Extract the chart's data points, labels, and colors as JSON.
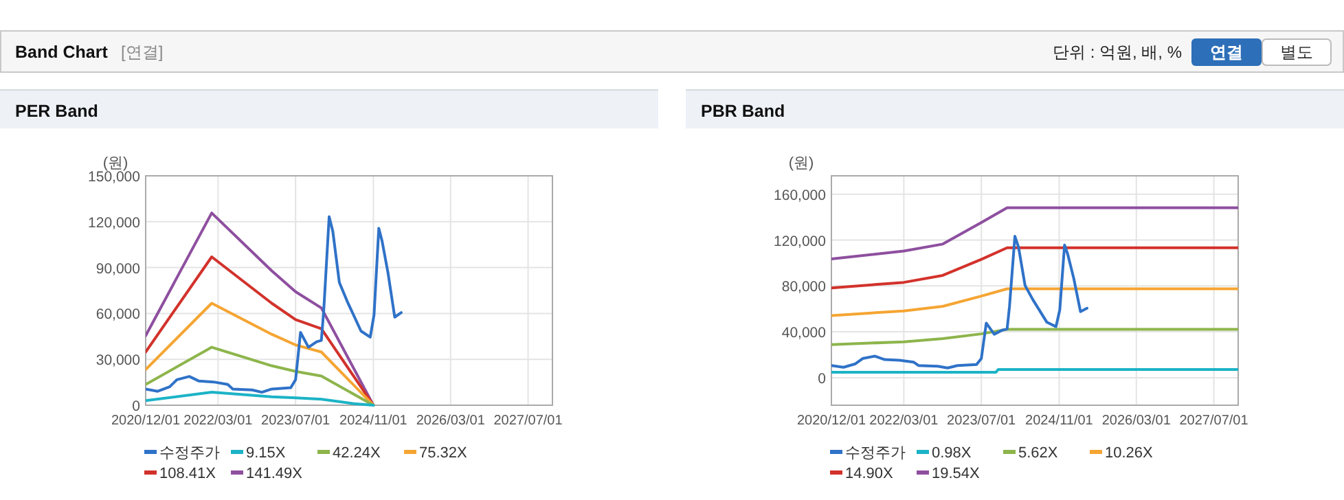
{
  "chart_data": [
    {
      "type": "other",
      "title": "Band Chart",
      "annotations": [
        "[연결]",
        "단위 : 억원, 배, %",
        "연결",
        "별도"
      ]
    },
    {
      "type": "line",
      "title": "PER Band",
      "ylabel": "(원)",
      "grid": true,
      "legend": "bottom",
      "xlim": [
        "2020-12-01",
        "2027-12-01"
      ],
      "ylim": [
        0,
        150000
      ],
      "xticks": [
        {
          "value": "2020-12-01",
          "label": "2020/12/01"
        },
        {
          "value": "2022-03-01",
          "label": "2022/03/01"
        },
        {
          "value": "2023-07-01",
          "label": "2023/07/01"
        },
        {
          "value": "2024-11-01",
          "label": "2024/11/01"
        },
        {
          "value": "2026-03-01",
          "label": "2026/03/01"
        },
        {
          "value": "2027-07-01",
          "label": "2027/07/01"
        }
      ],
      "yticks": [
        0,
        {
          "value": 30000,
          "label": "30,000"
        },
        {
          "value": 60000,
          "label": "60,000"
        },
        {
          "value": 90000,
          "label": "90,000"
        },
        {
          "value": 120000,
          "label": "120,000"
        },
        {
          "value": 150000,
          "label": "150,000"
        }
      ],
      "series": [
        {
          "name": "수정주가",
          "color": "#2f72c8",
          "x": [
            "2020-12-01",
            "2021-02-15",
            "2021-05-01",
            "2021-06-15",
            "2021-09-01",
            "2021-11-01",
            "2022-02-01",
            "2022-05-01",
            "2022-06-01",
            "2022-10-01",
            "2022-12-01",
            "2023-02-01",
            "2023-06-01",
            "2023-07-01",
            "2023-08-01",
            "2023-09-20",
            "2023-11-10",
            "2023-12-10",
            "2023-12-25",
            "2024-01-28",
            "2024-02-20",
            "2024-04-01",
            "2024-05-20",
            "2024-08-15",
            "2024-10-12",
            "2024-11-05",
            "2024-12-05",
            "2024-12-25",
            "2025-02-01",
            "2025-03-15",
            "2025-04-25"
          ],
          "values": [
            10600,
            9100,
            12100,
            16700,
            18800,
            15800,
            15200,
            13600,
            10600,
            10000,
            8500,
            10600,
            11500,
            16700,
            47600,
            37900,
            41500,
            42400,
            62100,
            123300,
            113600,
            80300,
            68000,
            48500,
            44500,
            59100,
            115700,
            107600,
            86400,
            57600,
            60600
          ]
        },
        {
          "name": "9.15X",
          "color": "#1cb3c6",
          "x": [
            "2020-12-01",
            "2022-01-20",
            "2023-02-01",
            "2023-07-01",
            "2023-12-10",
            "2024-07-01",
            "2024-11-01"
          ],
          "values": [
            3000,
            8500,
            5500,
            4800,
            3900,
            1000,
            0
          ]
        },
        {
          "name": "42.24X",
          "color": "#8db54c",
          "x": [
            "2020-12-01",
            "2022-01-20",
            "2023-02-01",
            "2023-07-01",
            "2023-12-10",
            "2024-11-01"
          ],
          "values": [
            13600,
            37900,
            25800,
            22100,
            19100,
            0
          ]
        },
        {
          "name": "75.32X",
          "color": "#f5a533",
          "x": [
            "2020-12-01",
            "2022-01-20",
            "2023-02-01",
            "2023-07-01",
            "2023-12-10",
            "2024-11-01"
          ],
          "values": [
            23300,
            66700,
            46400,
            39400,
            34800,
            0
          ]
        },
        {
          "name": "108.41X",
          "color": "#d2322b",
          "x": [
            "2020-12-01",
            "2022-01-20",
            "2023-02-01",
            "2023-07-01",
            "2023-12-10",
            "2024-11-01"
          ],
          "values": [
            34800,
            97000,
            66700,
            56000,
            50000,
            0
          ]
        },
        {
          "name": "141.49X",
          "color": "#8e4f9f",
          "x": [
            "2020-12-01",
            "2022-01-20",
            "2023-02-01",
            "2023-07-01",
            "2023-12-10",
            "2024-11-01"
          ],
          "values": [
            45500,
            125700,
            87900,
            74200,
            63600,
            0
          ]
        }
      ]
    },
    {
      "type": "line",
      "title": "PBR Band",
      "ylabel": "(원)",
      "grid": true,
      "legend": "bottom",
      "xlim": [
        "2020-12-01",
        "2027-12-01"
      ],
      "ylim": [
        -24000,
        176000
      ],
      "xticks": [
        {
          "value": "2020-12-01",
          "label": "2020/12/01"
        },
        {
          "value": "2022-03-01",
          "label": "2022/03/01"
        },
        {
          "value": "2023-07-01",
          "label": "2023/07/01"
        },
        {
          "value": "2024-11-01",
          "label": "2024/11/01"
        },
        {
          "value": "2026-03-01",
          "label": "2026/03/01"
        },
        {
          "value": "2027-07-01",
          "label": "2027/07/01"
        }
      ],
      "yticks": [
        0,
        {
          "value": 40000,
          "label": "40,000"
        },
        {
          "value": 80000,
          "label": "80,000"
        },
        {
          "value": 120000,
          "label": "120,000"
        },
        {
          "value": 160000,
          "label": "160,000"
        }
      ],
      "series": [
        {
          "name": "수정주가",
          "color": "#2f72c8",
          "x": [
            "2020-12-01",
            "2021-02-15",
            "2021-05-01",
            "2021-06-15",
            "2021-09-01",
            "2021-11-01",
            "2022-02-01",
            "2022-05-01",
            "2022-06-01",
            "2022-10-01",
            "2022-12-01",
            "2023-02-01",
            "2023-06-01",
            "2023-07-01",
            "2023-08-01",
            "2023-09-20",
            "2023-11-10",
            "2023-12-10",
            "2023-12-25",
            "2024-01-28",
            "2024-02-20",
            "2024-04-01",
            "2024-05-20",
            "2024-08-15",
            "2024-10-12",
            "2024-11-05",
            "2024-12-05",
            "2024-12-25",
            "2025-02-01",
            "2025-03-15",
            "2025-04-25"
          ],
          "values": [
            10600,
            9100,
            12100,
            16700,
            18800,
            15800,
            15200,
            13600,
            10600,
            10000,
            8500,
            10600,
            11500,
            16700,
            47600,
            37900,
            41500,
            42400,
            62100,
            123300,
            113600,
            80300,
            68000,
            48500,
            44500,
            59100,
            115700,
            107600,
            86400,
            57600,
            60600
          ]
        },
        {
          "name": "0.98X",
          "color": "#1cb3c6",
          "x": [
            "2020-12-01",
            "2023-10-01",
            "2023-10-15",
            "2027-12-01"
          ],
          "values": [
            4800,
            4800,
            7200,
            7200
          ]
        },
        {
          "name": "5.62X",
          "color": "#8db54c",
          "x": [
            "2020-12-01",
            "2022-03-01",
            "2022-11-01",
            "2023-07-01",
            "2023-12-10",
            "2027-12-01"
          ],
          "values": [
            28900,
            31300,
            34100,
            38200,
            42200,
            42200
          ]
        },
        {
          "name": "10.26X",
          "color": "#f5a533",
          "x": [
            "2020-12-01",
            "2022-03-01",
            "2022-11-01",
            "2023-07-01",
            "2023-12-10",
            "2027-12-01"
          ],
          "values": [
            54200,
            58200,
            62200,
            71100,
            77500,
            77500
          ]
        },
        {
          "name": "14.90X",
          "color": "#d2322b",
          "x": [
            "2020-12-01",
            "2022-03-01",
            "2022-11-01",
            "2023-07-01",
            "2023-12-10",
            "2027-12-01"
          ],
          "values": [
            78300,
            83100,
            89200,
            103200,
            113300,
            113300
          ]
        },
        {
          "name": "19.54X",
          "color": "#8e4f9f",
          "x": [
            "2020-12-01",
            "2022-03-01",
            "2022-11-01",
            "2023-07-01",
            "2023-12-10",
            "2027-12-01"
          ],
          "values": [
            103600,
            110400,
            116500,
            135300,
            148200,
            148200
          ]
        }
      ]
    }
  ]
}
